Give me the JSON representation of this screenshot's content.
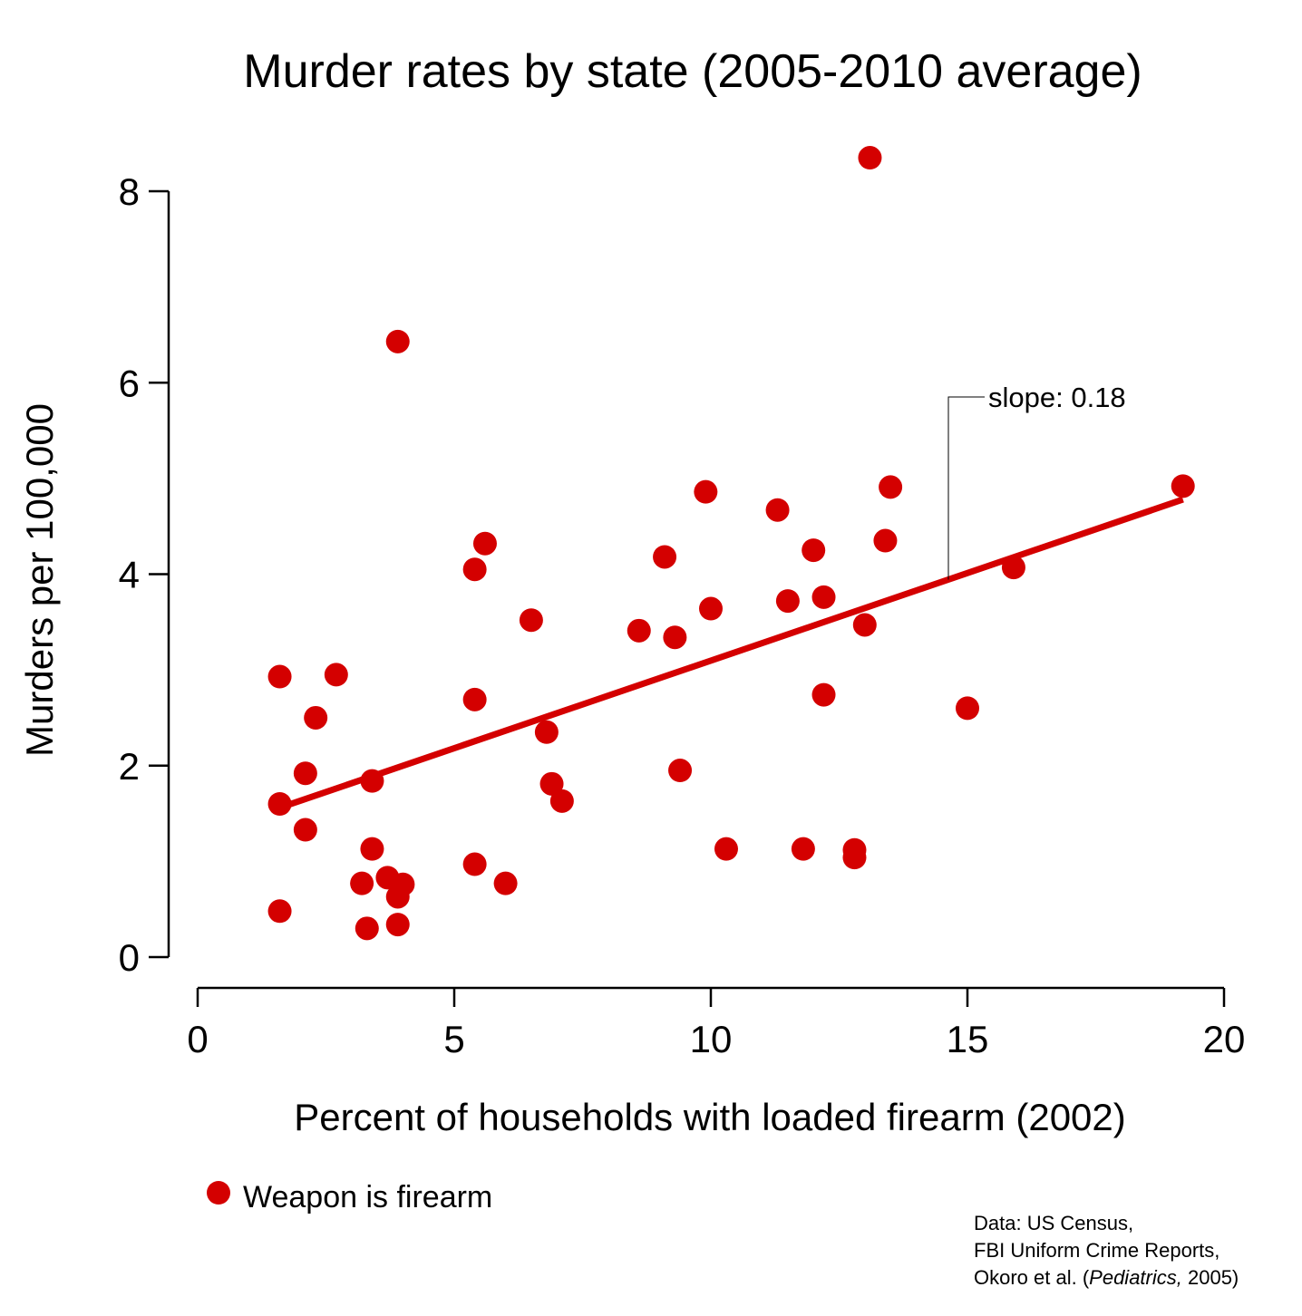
{
  "chart_data": {
    "type": "scatter",
    "title": "Murder rates by state (2005-2010 average)",
    "xlabel": "Percent of households with loaded firearm (2002)",
    "ylabel": "Murders per 100,000",
    "xlim": [
      0,
      20
    ],
    "ylim": [
      0,
      8
    ],
    "xticks": [
      "0",
      "5",
      "10",
      "15",
      "20"
    ],
    "yticks": [
      "0",
      "2",
      "4",
      "6",
      "8"
    ],
    "grid": false,
    "legend_position": "bottom-left",
    "series": [
      {
        "name": "Weapon is firearm",
        "color": "#d40000",
        "points": [
          {
            "x": 1.6,
            "y": 2.93
          },
          {
            "x": 2.7,
            "y": 2.95
          },
          {
            "x": 2.3,
            "y": 2.5
          },
          {
            "x": 2.1,
            "y": 1.92
          },
          {
            "x": 1.6,
            "y": 1.6
          },
          {
            "x": 2.1,
            "y": 1.33
          },
          {
            "x": 1.6,
            "y": 0.48
          },
          {
            "x": 3.4,
            "y": 1.84
          },
          {
            "x": 3.4,
            "y": 1.13
          },
          {
            "x": 3.2,
            "y": 0.77
          },
          {
            "x": 3.7,
            "y": 0.83
          },
          {
            "x": 4.0,
            "y": 0.76
          },
          {
            "x": 3.9,
            "y": 0.63
          },
          {
            "x": 3.3,
            "y": 0.3
          },
          {
            "x": 3.9,
            "y": 0.34
          },
          {
            "x": 3.9,
            "y": 6.43
          },
          {
            "x": 5.4,
            "y": 4.05
          },
          {
            "x": 5.6,
            "y": 4.32
          },
          {
            "x": 5.4,
            "y": 2.69
          },
          {
            "x": 5.4,
            "y": 0.97
          },
          {
            "x": 6.0,
            "y": 0.77
          },
          {
            "x": 6.5,
            "y": 3.52
          },
          {
            "x": 6.8,
            "y": 2.35
          },
          {
            "x": 6.9,
            "y": 1.81
          },
          {
            "x": 7.1,
            "y": 1.63
          },
          {
            "x": 8.6,
            "y": 3.41
          },
          {
            "x": 9.1,
            "y": 4.18
          },
          {
            "x": 9.3,
            "y": 3.34
          },
          {
            "x": 9.4,
            "y": 1.95
          },
          {
            "x": 9.9,
            "y": 4.86
          },
          {
            "x": 10.0,
            "y": 3.64
          },
          {
            "x": 10.3,
            "y": 1.13
          },
          {
            "x": 11.3,
            "y": 4.67
          },
          {
            "x": 11.5,
            "y": 3.72
          },
          {
            "x": 11.8,
            "y": 1.13
          },
          {
            "x": 12.0,
            "y": 4.25
          },
          {
            "x": 12.2,
            "y": 3.76
          },
          {
            "x": 12.2,
            "y": 2.74
          },
          {
            "x": 12.8,
            "y": 1.12
          },
          {
            "x": 12.8,
            "y": 1.04
          },
          {
            "x": 13.0,
            "y": 3.47
          },
          {
            "x": 13.1,
            "y": 8.35
          },
          {
            "x": 13.4,
            "y": 4.35
          },
          {
            "x": 13.5,
            "y": 4.91
          },
          {
            "x": 15.0,
            "y": 2.6
          },
          {
            "x": 15.9,
            "y": 4.07
          },
          {
            "x": 19.2,
            "y": 4.92
          }
        ]
      }
    ],
    "fit_line": {
      "color": "#d40000",
      "x": [
        1.6,
        19.2
      ],
      "y": [
        1.56,
        4.78
      ],
      "annotation": "slope: 0.18"
    },
    "source_note": [
      "Data: US Census,",
      "FBI Uniform Crime Reports,"
    ],
    "source_note_last": {
      "prefix": "Okoro et al. (",
      "italic": "Pediatrics,",
      "suffix": " 2005)"
    }
  }
}
